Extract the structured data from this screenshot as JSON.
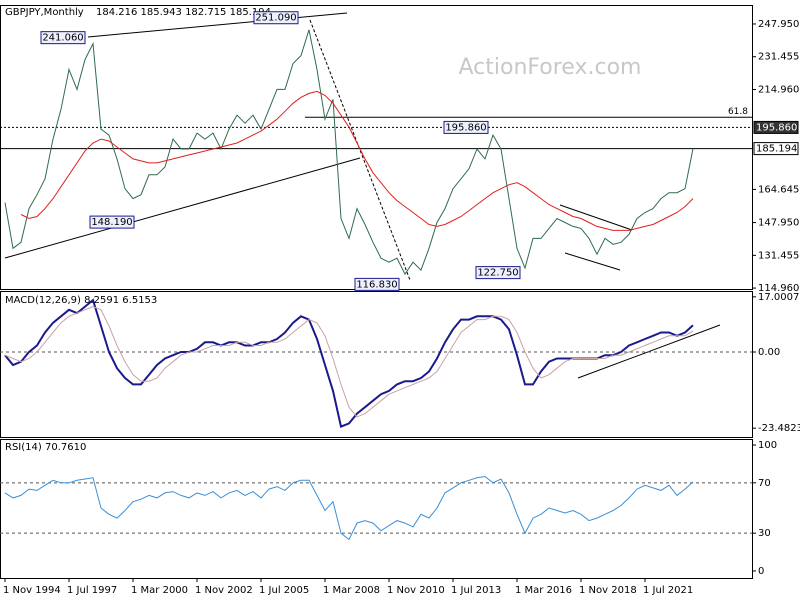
{
  "watermark": "ActionForex.com",
  "chart_data": [
    {
      "type": "line",
      "title": "GBPJPY,Monthly",
      "subtitle": "184.216 185.943 182.715 185.194",
      "categories": [
        "1 Nov 1994",
        null,
        null,
        null,
        null,
        null,
        null,
        null,
        "1 Jul 1997",
        null,
        null,
        null,
        null,
        null,
        null,
        null,
        "1 Mar 2000",
        null,
        null,
        null,
        null,
        null,
        null,
        null,
        "1 Nov 2002",
        null,
        null,
        null,
        null,
        null,
        null,
        null,
        "1 Jul 2005",
        null,
        null,
        null,
        null,
        null,
        null,
        null,
        "1 Mar 2008",
        null,
        null,
        null,
        null,
        null,
        null,
        null,
        "1 Nov 2010",
        null,
        null,
        null,
        null,
        null,
        null,
        null,
        "1 Jul 2013",
        null,
        null,
        null,
        null,
        null,
        null,
        null,
        "1 Mar 2016",
        null,
        null,
        null,
        null,
        null,
        null,
        null,
        "1 Nov 2018",
        null,
        null,
        null,
        null,
        null,
        null,
        null,
        "1 Jul 2021",
        null,
        null,
        null,
        null,
        null,
        null
      ],
      "series": [
        {
          "color": "#2f6b4f",
          "values": [
            158,
            135,
            138,
            155,
            162,
            170,
            190,
            205,
            225,
            215,
            230,
            238,
            195,
            192,
            180,
            165,
            160,
            162,
            172,
            172,
            176,
            190,
            185,
            185,
            193,
            190,
            193,
            185,
            195,
            202,
            198,
            202,
            195,
            205,
            215,
            215,
            228,
            232,
            245,
            225,
            200,
            210,
            150,
            140,
            155,
            147,
            138,
            130,
            128,
            130,
            122,
            128,
            124,
            135,
            148,
            155,
            165,
            170,
            175,
            185,
            180,
            192,
            185,
            160,
            135,
            125,
            140,
            140,
            145,
            150,
            148,
            146,
            145,
            140,
            132,
            140,
            137,
            138,
            142,
            150,
            153,
            155,
            160,
            163,
            163,
            165,
            185.194
          ]
        },
        {
          "color": "#e02020",
          "values": [
            null,
            null,
            152,
            150,
            151,
            155,
            160,
            166,
            172,
            178,
            184,
            188,
            190,
            189,
            186,
            183,
            180,
            179,
            178,
            178,
            179,
            180,
            181,
            182,
            183,
            184,
            185,
            186,
            187,
            188,
            190,
            192,
            194,
            197,
            200,
            204,
            208,
            211,
            213,
            214,
            212,
            208,
            202,
            196,
            188,
            180,
            173,
            168,
            163,
            159,
            156,
            153,
            150,
            147,
            146,
            147,
            149,
            151,
            154,
            157,
            160,
            163,
            165,
            167,
            168,
            166,
            163,
            160,
            157,
            155,
            153,
            151,
            150,
            148,
            146,
            145,
            144,
            144,
            144,
            145,
            146,
            147,
            149,
            151,
            153,
            156,
            160
          ]
        }
      ],
      "ylim": [
        114.5,
        257.5
      ],
      "yticks": [
        {
          "value": 247.95,
          "label": "247.950"
        },
        {
          "value": 231.455,
          "label": "231.455"
        },
        {
          "value": 214.96,
          "label": "214.960"
        },
        {
          "value": 164.645,
          "label": "164.645"
        },
        {
          "value": 147.95,
          "label": "147.950"
        },
        {
          "value": 131.455,
          "label": "131.455"
        },
        {
          "value": 114.96,
          "label": "114.960"
        }
      ],
      "levels": [
        {
          "value": 195.86,
          "label": "195.860"
        },
        {
          "value": 185.194,
          "label": "185.194"
        },
        {
          "value": 200.95,
          "label": "61.8"
        }
      ],
      "annotations": [
        {
          "value": 241.06,
          "label": "241.060"
        },
        {
          "value": 251.09,
          "label": "251.090"
        },
        {
          "value": 148.19,
          "label": "148.190"
        },
        {
          "value": 116.83,
          "label": "116.830"
        },
        {
          "value": 195.86,
          "label": "195.860"
        },
        {
          "value": 122.75,
          "label": "122.750"
        }
      ]
    },
    {
      "type": "line",
      "title": "MACD(12,26,9) 8.2591 6.5153",
      "series": [
        {
          "color": "#1a1a8c",
          "values": [
            -1,
            -4,
            -3,
            0,
            2,
            6,
            9,
            11,
            13,
            12,
            14,
            16,
            8,
            0,
            -5,
            -8,
            -10,
            -10,
            -7,
            -4,
            -2,
            -1,
            0,
            0,
            1,
            3,
            3,
            2,
            3,
            3,
            2,
            2,
            3,
            3,
            4,
            6,
            9,
            11,
            10,
            4,
            -4,
            -12,
            -23,
            -22,
            -19,
            -17,
            -15,
            -13,
            -12,
            -10,
            -9,
            -9,
            -8,
            -6,
            -2,
            3,
            7,
            10,
            10,
            11,
            11,
            11,
            10,
            7,
            -1,
            -10,
            -10,
            -6,
            -3,
            -2,
            -2,
            -2,
            -2,
            -2,
            -2,
            -1,
            -1,
            0,
            2,
            3,
            4,
            5,
            6,
            6,
            5,
            6,
            8.2591
          ]
        },
        {
          "color": "#c9a3a3",
          "values": [
            -1,
            -2,
            -3,
            -2,
            0,
            3,
            6,
            9,
            11,
            12,
            13,
            14,
            13,
            8,
            2,
            -3,
            -7,
            -9,
            -9,
            -8,
            -5,
            -3,
            -1,
            0,
            0,
            1,
            2,
            2,
            2,
            3,
            3,
            2,
            2,
            3,
            3,
            4,
            6,
            8,
            10,
            9,
            5,
            -2,
            -10,
            -17,
            -20,
            -19,
            -17,
            -15,
            -13,
            -12,
            -11,
            -10,
            -9,
            -8,
            -6,
            -2,
            2,
            6,
            8,
            10,
            10,
            11,
            11,
            10,
            6,
            0,
            -5,
            -8,
            -7,
            -5,
            -3,
            -2,
            -2,
            -2,
            -2,
            -2,
            -1,
            -1,
            0,
            1,
            2,
            3,
            4,
            5,
            5,
            5,
            6.5153
          ]
        }
      ],
      "ylim": [
        -26.2,
        18.8
      ],
      "yticks": [
        17.0007,
        {
          "value": 0,
          "label": "0.00"
        },
        -23.4823
      ],
      "levels": [
        0
      ]
    },
    {
      "type": "line",
      "title": "RSI(14) 70.7610",
      "series": [
        {
          "color": "#3a8fd6",
          "values": [
            62,
            58,
            60,
            65,
            64,
            68,
            72,
            70,
            70,
            72,
            73,
            74,
            50,
            45,
            42,
            48,
            55,
            57,
            60,
            58,
            62,
            63,
            60,
            58,
            62,
            60,
            63,
            58,
            62,
            64,
            60,
            63,
            58,
            65,
            67,
            64,
            70,
            72,
            72,
            60,
            48,
            55,
            30,
            25,
            38,
            40,
            38,
            32,
            36,
            40,
            38,
            35,
            45,
            42,
            50,
            62,
            66,
            70,
            72,
            74,
            75,
            70,
            73,
            62,
            45,
            30,
            42,
            45,
            50,
            48,
            46,
            48,
            45,
            40,
            42,
            45,
            48,
            52,
            58,
            65,
            68,
            66,
            64,
            68,
            60,
            65,
            70.761
          ]
        }
      ],
      "ylim": [
        -5.6,
        104.8
      ],
      "yticks": [
        100,
        70,
        30,
        0
      ],
      "levels": [
        70,
        30
      ]
    }
  ]
}
